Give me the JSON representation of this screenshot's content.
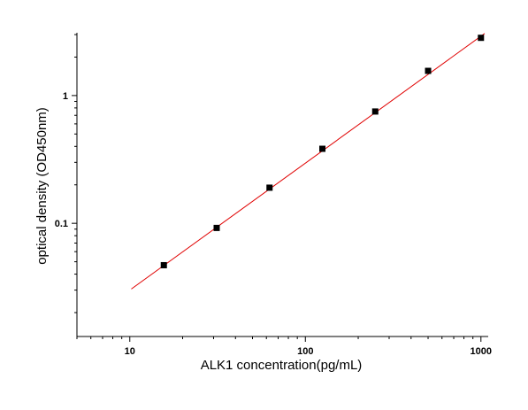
{
  "chart_data": {
    "type": "scatter",
    "x_label": "ALK1  concentration(pg/mL)",
    "y_label": "optical density (OD450nm)",
    "log_x": true,
    "log_y": true,
    "xlim": [
      5,
      1100
    ],
    "ylim": [
      0.013,
      3.1
    ],
    "xticks": [
      10,
      100,
      1000
    ],
    "xminor": [
      5,
      6,
      7,
      8,
      9,
      20,
      30,
      40,
      50,
      60,
      70,
      80,
      90,
      200,
      300,
      400,
      500,
      600,
      700,
      800,
      900
    ],
    "yticks": [
      0.1,
      1
    ],
    "yminor": [
      0.02,
      0.03,
      0.04,
      0.05,
      0.06,
      0.07,
      0.08,
      0.09,
      0.2,
      0.3,
      0.4,
      0.5,
      0.6,
      0.7,
      0.8,
      0.9,
      2,
      3
    ],
    "points": {
      "color": "#000000",
      "x": [
        15.625,
        31.25,
        62.5,
        125,
        250,
        500,
        1000
      ],
      "y": [
        0.047,
        0.092,
        0.19,
        0.383,
        0.75,
        1.56,
        2.83
      ]
    },
    "fit": {
      "color": "#e00000",
      "x": [
        10.2,
        1050
      ],
      "y": [
        0.0306,
        3.06
      ]
    }
  }
}
